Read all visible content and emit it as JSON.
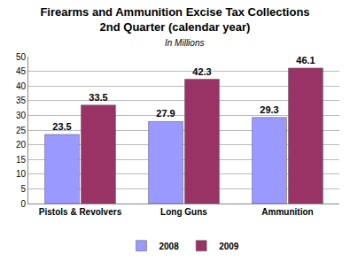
{
  "chart_data": {
    "type": "bar",
    "title": "Firearms and Ammunition Excise Tax Collections",
    "subtitle": "2nd Quarter (calendar year)",
    "annotations": [
      "In Millions"
    ],
    "categories": [
      "Pistols & Revolvers",
      "Long Guns",
      "Ammunition"
    ],
    "series": [
      {
        "name": "2008",
        "color": "#9999ff",
        "values": [
          23.5,
          27.9,
          29.3
        ]
      },
      {
        "name": "2009",
        "color": "#993366",
        "values": [
          33.5,
          42.3,
          46.1
        ]
      }
    ],
    "ylim": [
      0,
      50
    ],
    "yticks": [
      0,
      5,
      10,
      15,
      20,
      25,
      30,
      35,
      40,
      45,
      50
    ],
    "grid": true,
    "legend": "bottom",
    "data_labels": true
  }
}
